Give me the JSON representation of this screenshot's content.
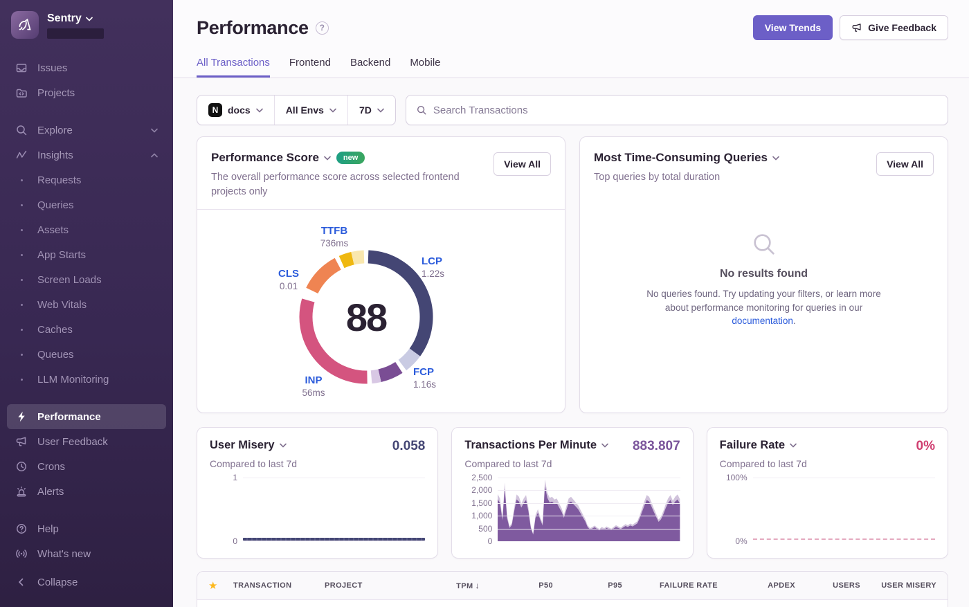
{
  "sidebar": {
    "org": {
      "name": "Sentry"
    },
    "items": [
      {
        "label": "Issues"
      },
      {
        "label": "Projects"
      },
      {
        "label": "Explore"
      },
      {
        "label": "Insights"
      },
      {
        "label": "Requests"
      },
      {
        "label": "Queries"
      },
      {
        "label": "Assets"
      },
      {
        "label": "App Starts"
      },
      {
        "label": "Screen Loads"
      },
      {
        "label": "Web Vitals"
      },
      {
        "label": "Caches"
      },
      {
        "label": "Queues"
      },
      {
        "label": "LLM Monitoring"
      },
      {
        "label": "Performance",
        "active": true
      },
      {
        "label": "User Feedback"
      },
      {
        "label": "Crons"
      },
      {
        "label": "Alerts"
      },
      {
        "label": "Help"
      },
      {
        "label": "What's new"
      },
      {
        "label": "Collapse"
      }
    ]
  },
  "header": {
    "title": "Performance",
    "view_trends": "View Trends",
    "give_feedback": "Give Feedback"
  },
  "tabs": [
    {
      "label": "All Transactions",
      "active": true
    },
    {
      "label": "Frontend",
      "active": false
    },
    {
      "label": "Backend",
      "active": false
    },
    {
      "label": "Mobile",
      "active": false
    }
  ],
  "filters": {
    "project": "docs",
    "environment": "All Envs",
    "period": "7D",
    "search_placeholder": "Search Transactions"
  },
  "cards": {
    "performance_score": {
      "title": "Performance Score",
      "badge": "new",
      "description": "The overall performance score across selected frontend projects only",
      "view_all": "View All"
    },
    "queries": {
      "title": "Most Time-Consuming Queries",
      "subtitle": "Top queries by total duration",
      "view_all": "View All",
      "empty_title": "No results found",
      "empty_body": "No queries found. Try updating your filters, or learn more about performance monitoring for queries in our ",
      "empty_link": "documentation",
      "empty_suffix": "."
    }
  },
  "mini_cards": [
    {
      "title": "User Misery",
      "value": "0.058",
      "subtitle": "Compared to last 7d",
      "value_color": "#444674",
      "yticks": [
        "1",
        "0"
      ]
    },
    {
      "title": "Transactions Per Minute",
      "value": "883.807",
      "subtitle": "Compared to last 7d",
      "value_color": "#7a549b",
      "yticks": [
        "2,500",
        "2,000",
        "1,500",
        "1,000",
        "500",
        "0"
      ]
    },
    {
      "title": "Failure Rate",
      "value": "0%",
      "subtitle": "Compared to last 7d",
      "value_color": "#cf3d6f",
      "yticks": [
        "100%",
        "0%"
      ]
    }
  ],
  "table": {
    "columns": [
      "TRANSACTION",
      "PROJECT",
      "TPM",
      "P50",
      "P95",
      "FAILURE RATE",
      "APDEX",
      "USERS",
      "USER MISERY"
    ],
    "sorted_column": "TPM",
    "sort_direction": "desc"
  },
  "chart_data": [
    {
      "type": "pie",
      "name": "performance-score-ring",
      "title": "Performance Score",
      "score": 88,
      "metrics": [
        {
          "label": "TTFB",
          "value": "736ms",
          "weight_color": "#efb811"
        },
        {
          "label": "LCP",
          "value": "1.22s",
          "weight_color": "#444674"
        },
        {
          "label": "CLS",
          "value": "0.01",
          "weight_color": "#ef8452"
        },
        {
          "label": "INP",
          "value": "56ms",
          "weight_color": "#d4547f"
        },
        {
          "label": "FCP",
          "value": "1.16s",
          "weight_color": "#7a4d94"
        }
      ],
      "segments": [
        {
          "metric": "LCP",
          "start": 2,
          "end": 126,
          "color": "#444674"
        },
        {
          "metric": "LCP-remainder",
          "start": 126,
          "end": 143,
          "color": "#c9cbe3"
        },
        {
          "metric": "FCP",
          "start": 147,
          "end": 167,
          "color": "#7a4d94"
        },
        {
          "metric": "FCP-remainder",
          "start": 167,
          "end": 175,
          "color": "#d8c8e4"
        },
        {
          "metric": "INP",
          "start": 179,
          "end": 286,
          "color": "#d4547f"
        },
        {
          "metric": "CLS",
          "start": 296,
          "end": 332,
          "color": "#ef8452"
        },
        {
          "metric": "TTFB",
          "start": 336,
          "end": 347,
          "color": "#efb811"
        },
        {
          "metric": "TTFB-remainder",
          "start": 347,
          "end": 358,
          "color": "#f9e7ae"
        }
      ]
    },
    {
      "type": "line",
      "name": "user-misery",
      "title": "User Misery",
      "current": 0.058,
      "ylim": [
        0,
        1
      ],
      "values": [
        0.02,
        0.02,
        0.02,
        0.02,
        0.02,
        0.02,
        0.02,
        0.02
      ]
    },
    {
      "type": "area",
      "name": "tpm",
      "title": "Transactions Per Minute",
      "current": 883.807,
      "ylim": [
        0,
        2500
      ],
      "color": "#7a549b",
      "values": [
        1650,
        1500,
        820,
        2060,
        900,
        520,
        640,
        1180,
        1640,
        1560,
        1320,
        1500,
        1620,
        1180,
        520,
        260,
        920,
        1120,
        840,
        620,
        2160,
        1700,
        1520,
        1560,
        1460,
        1500,
        1320,
        1160,
        920,
        1220,
        1500,
        1560,
        1460,
        1360,
        1260,
        1100,
        940,
        780,
        560,
        460,
        500,
        550,
        480,
        430,
        500,
        460,
        520,
        480,
        440,
        500,
        560,
        520,
        480,
        540,
        600,
        560,
        620,
        580,
        640,
        700,
        900,
        1150,
        1400,
        1620,
        1560,
        1360,
        1150,
        950,
        760,
        860,
        1060,
        1300,
        1500,
        1620,
        1420,
        1560,
        1640,
        1480
      ]
    },
    {
      "type": "line",
      "name": "failure-rate",
      "title": "Failure Rate",
      "current": "0%",
      "ylim": [
        "0%",
        "100%"
      ],
      "values": [
        0,
        0,
        0,
        0,
        0,
        0,
        0,
        0
      ]
    }
  ]
}
